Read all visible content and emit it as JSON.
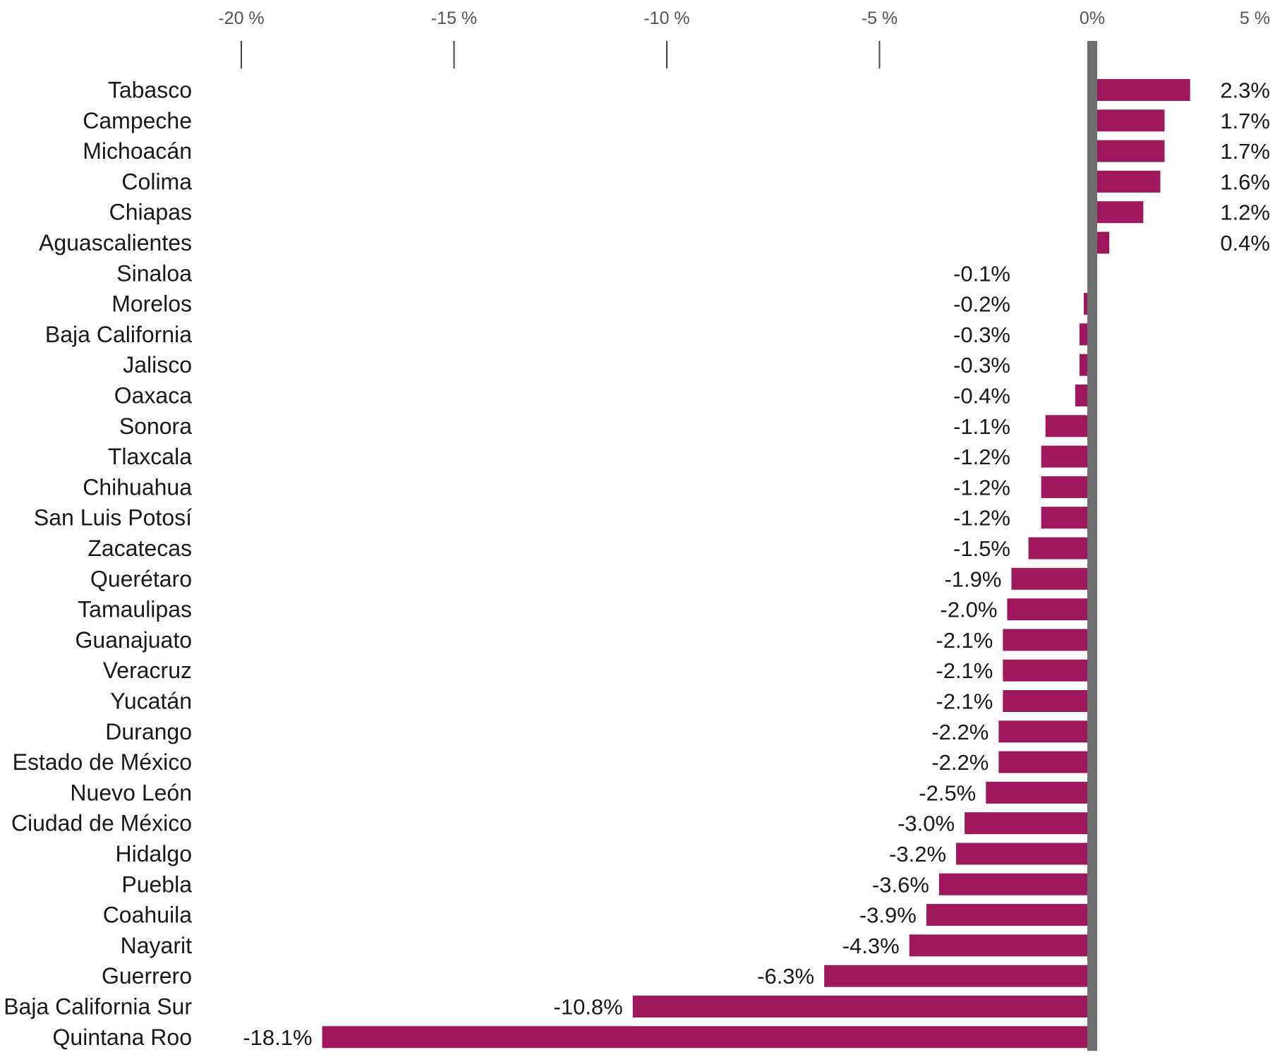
{
  "chart_data": {
    "type": "bar",
    "orientation": "horizontal",
    "categories": [
      "Tabasco",
      "Campeche",
      "Michoacán",
      "Colima",
      "Chiapas",
      "Aguascalientes",
      "Sinaloa",
      "Morelos",
      "Baja California",
      "Jalisco",
      "Oaxaca",
      "Sonora",
      "Tlaxcala",
      "Chihuahua",
      "San Luis Potosí",
      "Zacatecas",
      "Querétaro",
      "Tamaulipas",
      "Guanajuato",
      "Veracruz",
      "Yucatán",
      "Durango",
      "Estado de México",
      "Nuevo León",
      "Ciudad de México",
      "Hidalgo",
      "Puebla",
      "Coahuila",
      "Nayarit",
      "Guerrero",
      "Baja California Sur",
      "Quintana Roo"
    ],
    "values": [
      2.3,
      1.7,
      1.7,
      1.6,
      1.2,
      0.4,
      -0.1,
      -0.2,
      -0.3,
      -0.3,
      -0.4,
      -1.1,
      -1.2,
      -1.2,
      -1.2,
      -1.5,
      -1.9,
      -2.0,
      -2.1,
      -2.1,
      -2.1,
      -2.2,
      -2.2,
      -2.5,
      -3.0,
      -3.2,
      -3.6,
      -3.9,
      -4.3,
      -6.3,
      -10.8,
      -18.1
    ],
    "value_labels": [
      "2.3%",
      "1.7%",
      "1.7%",
      "1.6%",
      "1.2%",
      "0.4%",
      "-0.1%",
      "-0.2%",
      "-0.3%",
      "-0.3%",
      "-0.4%",
      "-1.1%",
      "-1.2%",
      "-1.2%",
      "-1.2%",
      "-1.5%",
      "-1.9%",
      "-2.0%",
      "-2.1%",
      "-2.1%",
      "-2.1%",
      "-2.2%",
      "-2.2%",
      "-2.5%",
      "-3.0%",
      "-3.2%",
      "-3.6%",
      "-3.9%",
      "-4.3%",
      "-6.3%",
      "-10.8%",
      "-18.1%"
    ],
    "x_ticks": [
      -20,
      -15,
      -10,
      -5,
      0,
      5
    ],
    "x_tick_labels": [
      "-20 %",
      "-15 %",
      "-10 %",
      "-5 %",
      "0%",
      "5 %"
    ],
    "xlim": [
      -20.2,
      5.1
    ],
    "title": "",
    "xlabel": "",
    "ylabel": "",
    "grid": false,
    "bar_color": "#a0185c",
    "zero_line_color": "#6d6e70"
  }
}
